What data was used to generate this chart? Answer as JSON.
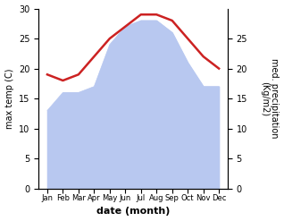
{
  "months": [
    "Jan",
    "Feb",
    "Mar",
    "Apr",
    "May",
    "Jun",
    "Jul",
    "Aug",
    "Sep",
    "Oct",
    "Nov",
    "Dec"
  ],
  "temperature": [
    19,
    18,
    19,
    22,
    25,
    27,
    29,
    29,
    28,
    25,
    22,
    20
  ],
  "precipitation": [
    13,
    16,
    16,
    17,
    24,
    27,
    28,
    28,
    26,
    21,
    17,
    17
  ],
  "temp_color": "#cc2222",
  "precip_color": "#b8c8f0",
  "ylabel_left": "max temp (C)",
  "ylabel_right": "med. precipitation\n(Kg/m2)",
  "xlabel": "date (month)",
  "ylim_left": [
    0,
    30
  ],
  "ylim_right": [
    0,
    30
  ],
  "yticks_left": [
    0,
    5,
    10,
    15,
    20,
    25,
    30
  ],
  "yticks_right": [
    0,
    5,
    10,
    15,
    20,
    25
  ],
  "background_color": "#ffffff",
  "line_width": 1.8
}
